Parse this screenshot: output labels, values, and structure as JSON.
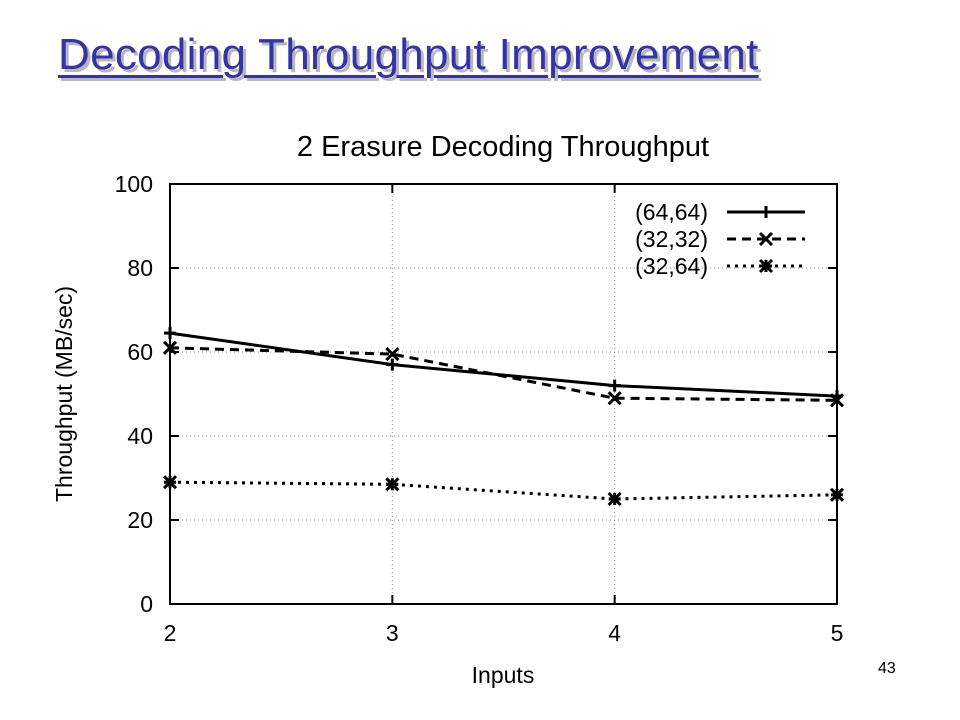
{
  "slide": {
    "title": "Decoding Throughput Improvement",
    "page_number": "43"
  },
  "chart_data": {
    "type": "line",
    "title": "2 Erasure Decoding Throughput",
    "xlabel": "Inputs",
    "ylabel": "Throughput (MB/sec)",
    "x": [
      2,
      3,
      4,
      5
    ],
    "x_ticks": [
      "2",
      "3",
      "4",
      "5"
    ],
    "xlim": [
      2,
      5
    ],
    "ylim": [
      0,
      100
    ],
    "y_ticks": [
      "0",
      "20",
      "40",
      "60",
      "80",
      "100"
    ],
    "grid": true,
    "legend_position": "top-right",
    "series": [
      {
        "name": "(64,64)",
        "values": [
          64.5,
          57,
          52,
          49.5
        ],
        "line_style": "solid",
        "marker": "plus"
      },
      {
        "name": "(32,32)",
        "values": [
          61,
          59.5,
          49,
          48.5
        ],
        "line_style": "dashed",
        "marker": "x"
      },
      {
        "name": "(32,64)",
        "values": [
          29,
          28.5,
          25,
          26
        ],
        "line_style": "dotted",
        "marker": "star"
      }
    ]
  }
}
